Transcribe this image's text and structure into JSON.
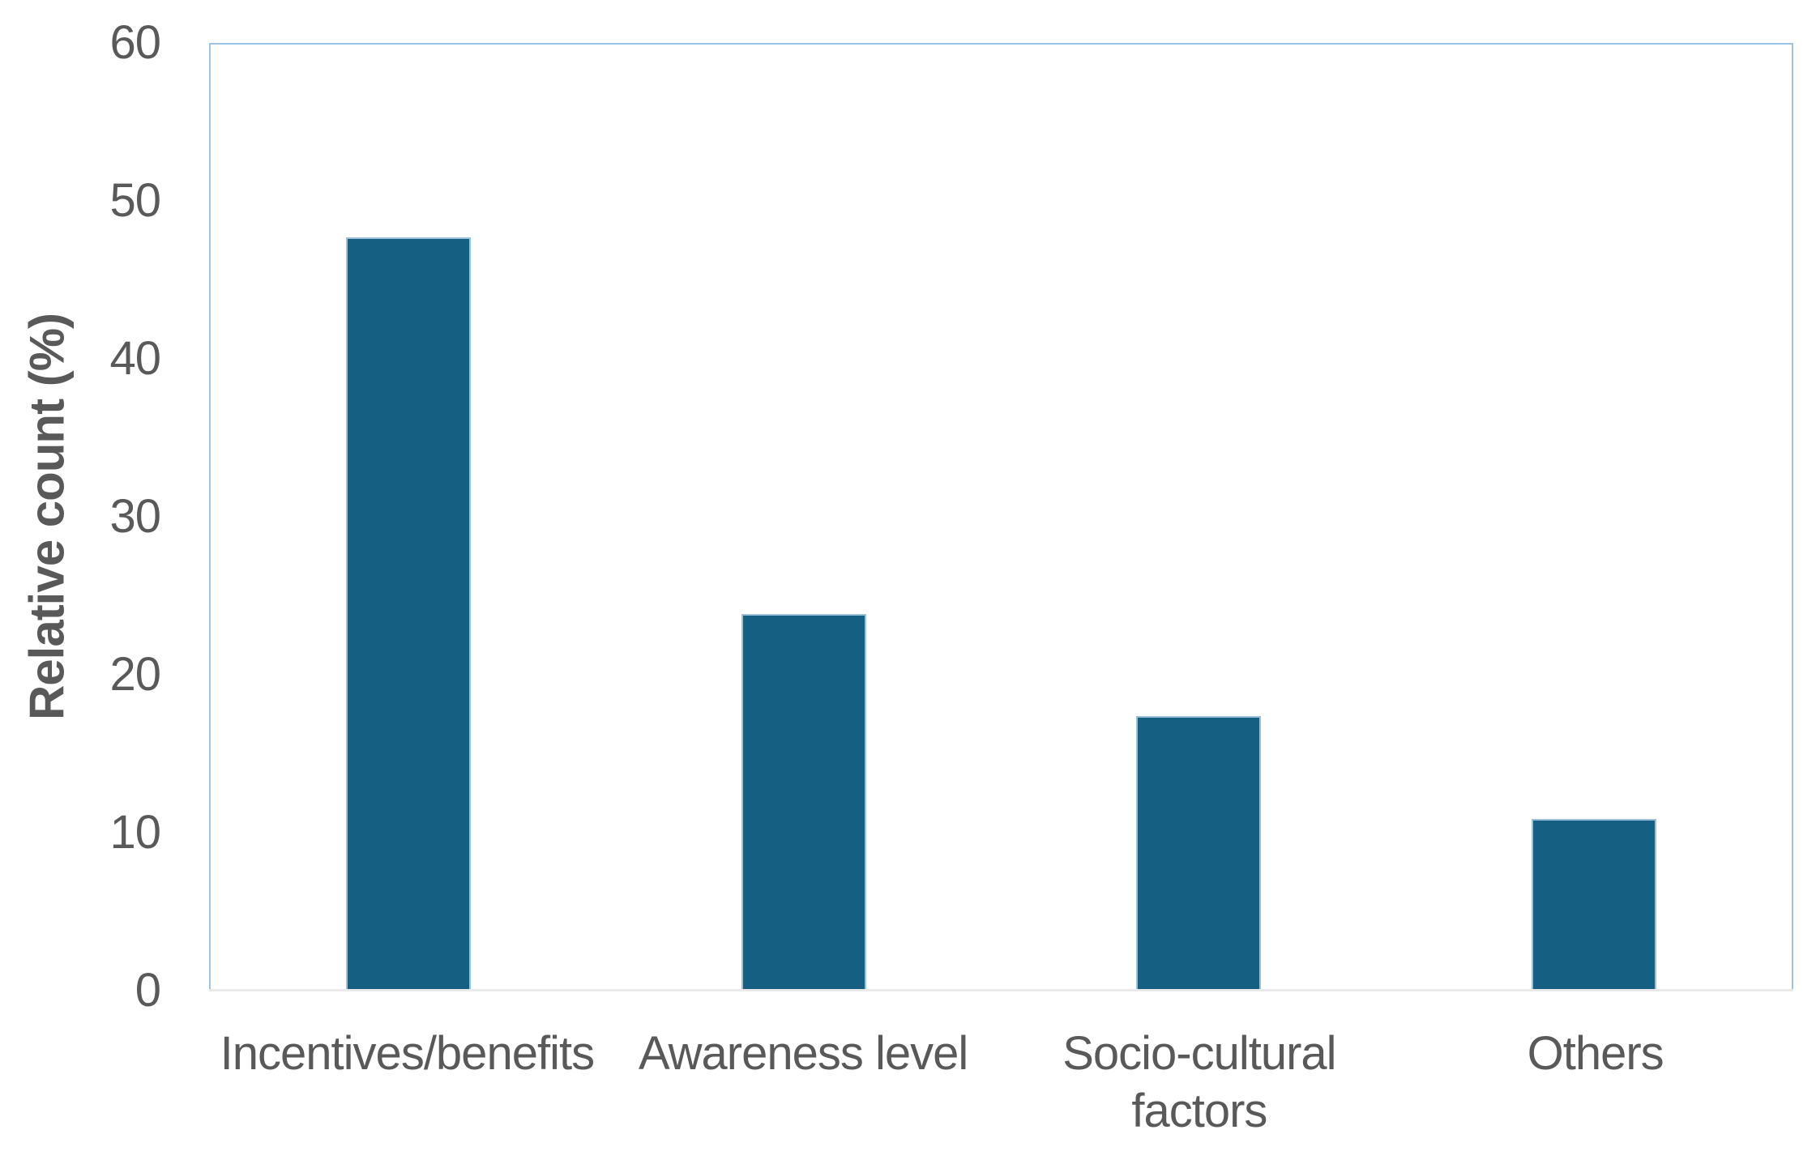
{
  "chart_data": {
    "type": "bar",
    "title": "",
    "xlabel": "",
    "ylabel": "Relative count (%)",
    "categories": [
      "Incentives/benefits",
      "Awareness level",
      "Socio-cultural\nfactors",
      "Others"
    ],
    "values": [
      47.8,
      23.9,
      17.4,
      10.9
    ],
    "ylim": [
      0,
      60
    ],
    "y_ticks": [
      "0",
      "10",
      "20",
      "30",
      "40",
      "50",
      "60"
    ],
    "grid": "off",
    "legend": "none",
    "colors": {
      "bar_fill": "#156082",
      "bar_edge": "#9cc2da",
      "plot_border": "#9dc3e6",
      "axis_line": "#e9e9e9",
      "text": "#595959",
      "background": "#ffffff"
    }
  }
}
